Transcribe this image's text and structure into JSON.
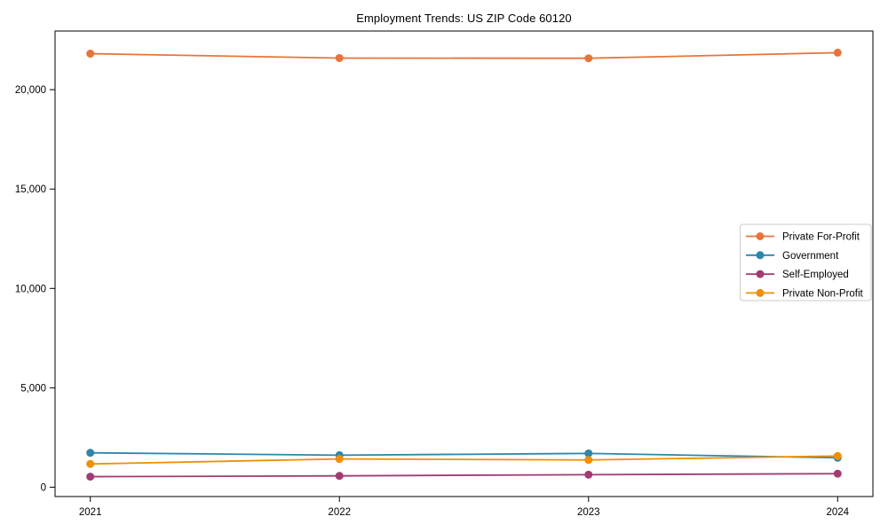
{
  "figure": {
    "background": "#ffffff"
  },
  "chart_data": {
    "type": "line",
    "title": "Employment Trends: US ZIP Code 60120",
    "categories": [
      "2021",
      "2022",
      "2023",
      "2024"
    ],
    "series": [
      {
        "name": "Private For-Profit",
        "color": "#E8743B",
        "values": [
          21810,
          21590,
          21580,
          21860
        ]
      },
      {
        "name": "Government",
        "color": "#2E86AB",
        "values": [
          1730,
          1610,
          1700,
          1480
        ]
      },
      {
        "name": "Self-Employed",
        "color": "#A23B72",
        "values": [
          530,
          570,
          630,
          680
        ]
      },
      {
        "name": "Private Non-Profit",
        "color": "#F18F01",
        "values": [
          1170,
          1420,
          1370,
          1570
        ]
      }
    ],
    "xlabel": "",
    "ylabel": "",
    "ylim": [
      -470,
      22950
    ],
    "yticks": [
      0,
      5000,
      10000,
      15000,
      20000
    ],
    "ytick_labels": [
      "0",
      "5,000",
      "10,000",
      "15,000",
      "20,000"
    ],
    "grid": false,
    "marker": "circle",
    "axis_color": "#000000",
    "legend": {
      "position": "center right",
      "background": "#ffffff",
      "border_color": "#cccccc"
    }
  }
}
